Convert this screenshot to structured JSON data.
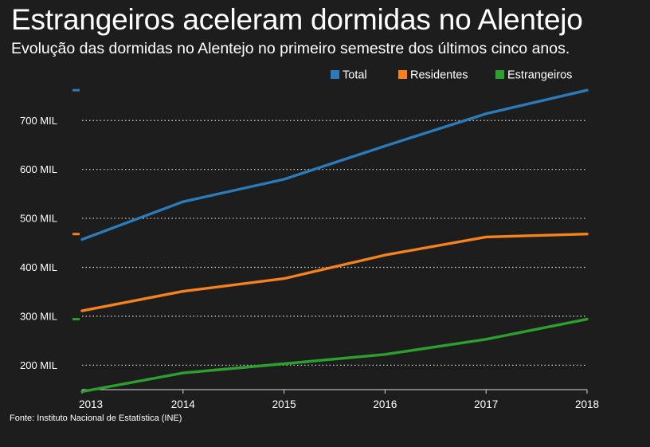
{
  "chart_data": {
    "type": "line",
    "title": "Estrangeiros aceleram dormidas no Alentejo",
    "subtitle": "Evolução das dormidas no Alentejo no primeiro semestre dos últimos cinco anos.",
    "source": "Fonte: Instituto Nacional de Estatística (INE)",
    "x": [
      "2013",
      "2014",
      "2015",
      "2016",
      "2017",
      "2018"
    ],
    "ylim": [
      150000,
      790000
    ],
    "yticks": [
      200000,
      300000,
      400000,
      500000,
      600000,
      700000
    ],
    "ytick_labels": [
      "200 MIL",
      "300 MIL",
      "400 MIL",
      "500 MIL",
      "600 MIL",
      "700 MIL"
    ],
    "grid": true,
    "legend_position": "top-right",
    "series": [
      {
        "name": "Total",
        "color": "#2b7bba",
        "values": [
          457000,
          534000,
          580000,
          648000,
          714000,
          762000
        ]
      },
      {
        "name": "Residentes",
        "color": "#f5821f",
        "values": [
          311000,
          351000,
          377000,
          425000,
          462000,
          468000
        ]
      },
      {
        "name": "Estrangeiros",
        "color": "#2ca02c",
        "values": [
          146000,
          184000,
          203000,
          222000,
          253000,
          294000
        ]
      }
    ]
  }
}
